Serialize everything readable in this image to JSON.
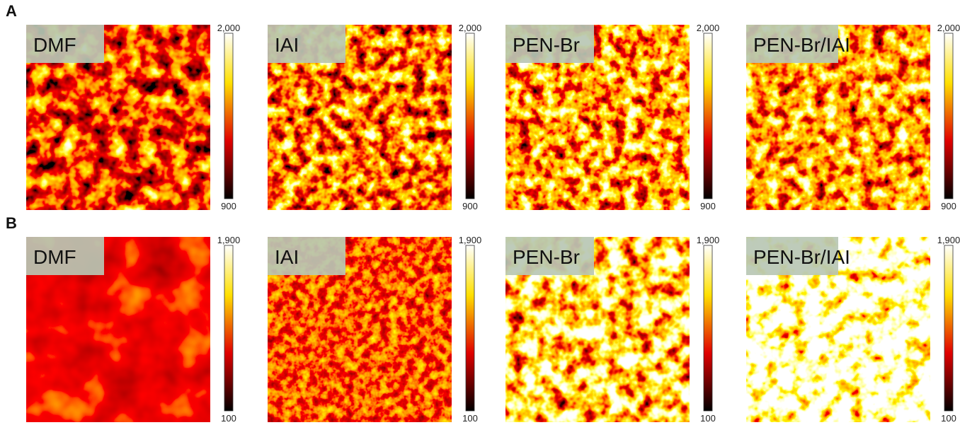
{
  "rows": [
    {
      "panel": "A",
      "maps": [
        {
          "label": "DMF",
          "max": "2,000",
          "min": "900"
        },
        {
          "label": "IAI",
          "max": "2,000",
          "min": "900"
        },
        {
          "label": "PEN-Br",
          "max": "2,000",
          "min": "900"
        },
        {
          "label": "PEN-Br/IAI",
          "max": "2,000",
          "min": "900"
        }
      ]
    },
    {
      "panel": "B",
      "maps": [
        {
          "label": "DMF",
          "max": "1,900",
          "min": "100"
        },
        {
          "label": "IAI",
          "max": "1,900",
          "min": "100"
        },
        {
          "label": "PEN-Br",
          "max": "1,900",
          "min": "100"
        },
        {
          "label": "PEN-Br/IAI",
          "max": "1,900",
          "min": "100"
        }
      ]
    }
  ]
}
